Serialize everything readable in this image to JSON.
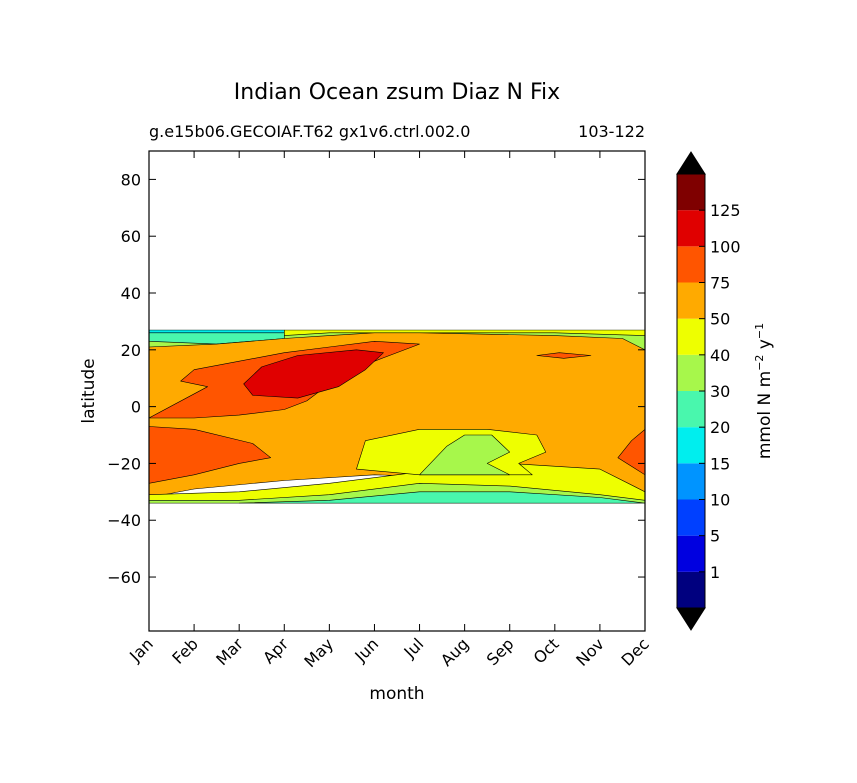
{
  "chart_data": {
    "type": "heatmap",
    "title": "Indian Ocean zsum Diaz N Fix",
    "subtitle_left": "g.e15b06.GECOIAF.T62 gx1v6.ctrl.002.0",
    "subtitle_right": "103-122",
    "xlabel": "month",
    "ylabel": "latitude",
    "x_categories": [
      "Jan",
      "Feb",
      "Mar",
      "Apr",
      "May",
      "Jun",
      "Jul",
      "Aug",
      "Sep",
      "Oct",
      "Nov",
      "Dec"
    ],
    "y_ticks": [
      80,
      60,
      40,
      20,
      0,
      -20,
      -40,
      -60
    ],
    "y_tick_labels": [
      "80",
      "60",
      "40",
      "20",
      "0",
      "−20",
      "−40",
      "−60"
    ],
    "ylim": [
      -79,
      90
    ],
    "data_lat_range": [
      -34,
      27
    ],
    "colorbar": {
      "label_main": "mmol N m",
      "label_exp1": "−2",
      "label_mid": " y",
      "label_exp2": "−1",
      "levels": [
        0,
        1,
        5,
        10,
        15,
        20,
        30,
        40,
        50,
        75,
        100,
        125,
        150
      ],
      "tick_labels": [
        "1",
        "5",
        "10",
        "15",
        "20",
        "30",
        "40",
        "50",
        "75",
        "100",
        "125"
      ],
      "colors": [
        "#00007f",
        "#0000e0",
        "#0040ff",
        "#0094ff",
        "#00eeee",
        "#49f7ad",
        "#a7f74b",
        "#eeff00",
        "#ffaa00",
        "#ff5500",
        "#e00000",
        "#7f0000"
      ],
      "under_color": "#000000",
      "over_color": "#000000"
    },
    "regions": [
      {
        "name": "band-north-edge",
        "level": 6,
        "points": [
          [
            0,
            27
          ],
          [
            11,
            27
          ],
          [
            11,
            20
          ],
          [
            0,
            20
          ]
        ]
      },
      {
        "name": "band-cyan",
        "level": 4,
        "points": [
          [
            0,
            27
          ],
          [
            3,
            27
          ],
          [
            3,
            26
          ],
          [
            0,
            26
          ]
        ]
      },
      {
        "name": "band-teal",
        "level": 5,
        "points": [
          [
            0,
            26
          ],
          [
            3,
            26
          ],
          [
            3,
            24
          ],
          [
            1.5,
            22
          ],
          [
            0,
            23
          ]
        ]
      },
      {
        "name": "band-yellow-north",
        "level": 7,
        "points": [
          [
            3,
            27
          ],
          [
            11,
            27
          ],
          [
            11,
            25
          ],
          [
            9,
            26
          ],
          [
            6,
            26
          ],
          [
            4,
            26
          ],
          [
            3,
            25
          ]
        ]
      },
      {
        "name": "main-orange",
        "level": 8,
        "points": [
          [
            0,
            21
          ],
          [
            1.5,
            22
          ],
          [
            3,
            24
          ],
          [
            4,
            25
          ],
          [
            5,
            26
          ],
          [
            6,
            26
          ],
          [
            9,
            25
          ],
          [
            10.5,
            24
          ],
          [
            11,
            20
          ],
          [
            11,
            -30
          ],
          [
            9,
            -27
          ],
          [
            7,
            -25
          ],
          [
            5,
            -24
          ],
          [
            3,
            -26
          ],
          [
            1,
            -29
          ],
          [
            0,
            -32
          ]
        ]
      },
      {
        "name": "south-yellow",
        "level": 7,
        "points": [
          [
            0,
            -31
          ],
          [
            2,
            -30
          ],
          [
            4,
            -27
          ],
          [
            6,
            -23
          ],
          [
            8,
            -20
          ],
          [
            10,
            -22
          ],
          [
            11,
            -30
          ],
          [
            11,
            -34
          ],
          [
            0,
            -34
          ]
        ]
      },
      {
        "name": "south-green",
        "level": 6,
        "points": [
          [
            0,
            -33
          ],
          [
            2,
            -33
          ],
          [
            4,
            -31
          ],
          [
            6,
            -27
          ],
          [
            8,
            -28
          ],
          [
            10,
            -31
          ],
          [
            11,
            -33
          ],
          [
            11,
            -34
          ],
          [
            0,
            -34
          ]
        ]
      },
      {
        "name": "south-teal",
        "level": 5,
        "points": [
          [
            2,
            -34
          ],
          [
            4,
            -33
          ],
          [
            6,
            -30
          ],
          [
            8,
            -30
          ],
          [
            10,
            -32
          ],
          [
            11,
            -34
          ]
        ]
      },
      {
        "name": "yellow-tongue",
        "level": 7,
        "points": [
          [
            4.6,
            -22
          ],
          [
            4.8,
            -12
          ],
          [
            6,
            -8
          ],
          [
            7.5,
            -8
          ],
          [
            8.6,
            -10
          ],
          [
            8.8,
            -16
          ],
          [
            8.2,
            -20
          ],
          [
            8.5,
            -24
          ],
          [
            6,
            -24
          ],
          [
            4.6,
            -22
          ]
        ]
      },
      {
        "name": "green-tongue",
        "level": 6,
        "points": [
          [
            6,
            -24
          ],
          [
            6.6,
            -14
          ],
          [
            7,
            -10
          ],
          [
            7.6,
            -10
          ],
          [
            8,
            -16
          ],
          [
            7.5,
            -20
          ],
          [
            8,
            -24
          ]
        ]
      },
      {
        "name": "orange-sw",
        "level": 9,
        "points": [
          [
            0,
            -7
          ],
          [
            1,
            -8
          ],
          [
            2.3,
            -13
          ],
          [
            2.7,
            -18
          ],
          [
            2,
            -20
          ],
          [
            1,
            -24
          ],
          [
            0,
            -27
          ]
        ]
      },
      {
        "name": "orange-se",
        "level": 9,
        "points": [
          [
            11,
            -8
          ],
          [
            10.7,
            -12
          ],
          [
            10.4,
            -18
          ],
          [
            10.8,
            -22
          ],
          [
            11,
            -24
          ]
        ]
      },
      {
        "name": "orange-north",
        "level": 9,
        "points": [
          [
            0,
            -4
          ],
          [
            1,
            -4
          ],
          [
            2,
            -3
          ],
          [
            3,
            -1
          ],
          [
            3.5,
            2
          ],
          [
            4,
            8
          ],
          [
            5,
            16
          ],
          [
            6,
            22
          ],
          [
            5,
            23
          ],
          [
            4,
            21
          ],
          [
            3,
            19
          ],
          [
            2,
            16
          ],
          [
            1,
            13
          ],
          [
            0.7,
            9
          ],
          [
            1.3,
            7
          ]
        ]
      },
      {
        "name": "red-core",
        "level": 10,
        "points": [
          [
            2.1,
            8
          ],
          [
            2.5,
            14
          ],
          [
            3.3,
            18
          ],
          [
            4.6,
            20
          ],
          [
            5.2,
            19
          ],
          [
            4.8,
            13
          ],
          [
            4.2,
            7
          ],
          [
            3.3,
            3
          ],
          [
            2.3,
            4
          ]
        ]
      },
      {
        "name": "orange-oct",
        "level": 9,
        "points": [
          [
            8.6,
            18
          ],
          [
            9.1,
            19
          ],
          [
            9.8,
            18
          ],
          [
            9.2,
            17
          ]
        ]
      }
    ]
  }
}
